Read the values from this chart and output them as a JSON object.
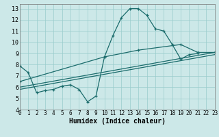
{
  "xlabel": "Humidex (Indice chaleur)",
  "bg_color": "#cce8e8",
  "grid_color": "#99cccc",
  "line_color": "#1a6b6b",
  "xlim": [
    0,
    23
  ],
  "ylim": [
    4,
    13.4
  ],
  "xticks": [
    0,
    1,
    2,
    3,
    4,
    5,
    6,
    7,
    8,
    9,
    10,
    11,
    12,
    13,
    14,
    15,
    16,
    17,
    18,
    19,
    20,
    21,
    22,
    23
  ],
  "yticks": [
    4,
    5,
    6,
    7,
    8,
    9,
    10,
    11,
    12,
    13
  ],
  "series": [
    {
      "x": [
        0,
        1,
        2,
        3,
        4,
        5,
        6,
        7,
        8,
        9,
        10,
        11,
        12,
        13,
        14,
        15,
        16,
        17,
        18,
        19,
        20,
        21
      ],
      "y": [
        7.9,
        7.3,
        5.5,
        5.7,
        5.8,
        6.1,
        6.2,
        5.8,
        4.7,
        5.2,
        8.7,
        10.6,
        12.2,
        13.0,
        13.0,
        12.4,
        11.2,
        11.0,
        9.8,
        8.5,
        8.9,
        9.0
      ],
      "marker": true
    },
    {
      "x": [
        0,
        10,
        14,
        19,
        21,
        23
      ],
      "y": [
        6.5,
        8.7,
        9.3,
        9.8,
        9.1,
        9.1
      ],
      "marker": true
    },
    {
      "x": [
        0,
        23
      ],
      "y": [
        6.0,
        9.1
      ],
      "marker": false
    },
    {
      "x": [
        0,
        23
      ],
      "y": [
        5.8,
        8.9
      ],
      "marker": false
    }
  ]
}
